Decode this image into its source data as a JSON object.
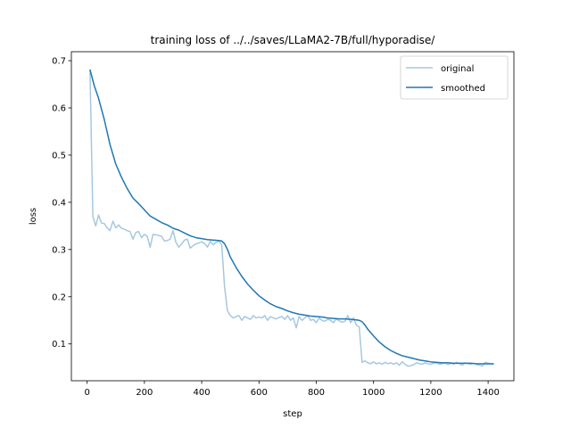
{
  "chart_data": {
    "type": "line",
    "title": "training loss of ../../saves/LLaMA2-7B/full/hyporadise/",
    "xlabel": "step",
    "ylabel": "loss",
    "xlim": [
      -55,
      1490
    ],
    "ylim": [
      0.022,
      0.719
    ],
    "xticks": [
      0,
      200,
      400,
      600,
      800,
      1000,
      1200,
      1400
    ],
    "yticks": [
      0.1,
      0.2,
      0.3,
      0.4,
      0.5,
      0.6,
      0.7
    ],
    "xtick_labels": [
      "0",
      "200",
      "400",
      "600",
      "800",
      "1000",
      "1200",
      "1400"
    ],
    "ytick_labels": [
      "0.1",
      "0.2",
      "0.3",
      "0.4",
      "0.5",
      "0.6",
      "0.7"
    ],
    "grid": false,
    "legend_position": "top-right",
    "series": [
      {
        "name": "original",
        "color": "#a6c8e0",
        "x": [
          10,
          20,
          30,
          40,
          50,
          60,
          70,
          80,
          90,
          100,
          110,
          120,
          130,
          140,
          150,
          160,
          170,
          180,
          190,
          200,
          210,
          220,
          230,
          240,
          250,
          260,
          270,
          280,
          290,
          300,
          310,
          320,
          330,
          340,
          350,
          360,
          370,
          380,
          390,
          400,
          410,
          420,
          430,
          440,
          450,
          460,
          470,
          480,
          490,
          500,
          510,
          520,
          530,
          540,
          550,
          560,
          570,
          580,
          590,
          600,
          610,
          620,
          630,
          640,
          650,
          660,
          670,
          680,
          690,
          700,
          710,
          720,
          730,
          740,
          750,
          760,
          770,
          780,
          790,
          800,
          810,
          820,
          830,
          840,
          850,
          860,
          870,
          880,
          890,
          900,
          910,
          920,
          930,
          940,
          950,
          960,
          970,
          980,
          990,
          1000,
          1010,
          1020,
          1030,
          1040,
          1050,
          1060,
          1070,
          1080,
          1090,
          1100,
          1110,
          1120,
          1130,
          1140,
          1150,
          1160,
          1170,
          1180,
          1190,
          1200,
          1210,
          1220,
          1230,
          1240,
          1250,
          1260,
          1270,
          1280,
          1290,
          1300,
          1310,
          1320,
          1330,
          1340,
          1350,
          1360,
          1370,
          1380,
          1390,
          1400,
          1410,
          1420
        ],
        "values": [
          0.681,
          0.37,
          0.35,
          0.373,
          0.356,
          0.355,
          0.346,
          0.34,
          0.36,
          0.346,
          0.352,
          0.345,
          0.343,
          0.34,
          0.338,
          0.322,
          0.336,
          0.338,
          0.325,
          0.332,
          0.328,
          0.305,
          0.332,
          0.331,
          0.33,
          0.328,
          0.318,
          0.319,
          0.322,
          0.34,
          0.315,
          0.305,
          0.312,
          0.32,
          0.322,
          0.303,
          0.308,
          0.312,
          0.314,
          0.316,
          0.313,
          0.305,
          0.317,
          0.31,
          0.315,
          0.318,
          0.31,
          0.22,
          0.17,
          0.16,
          0.155,
          0.158,
          0.16,
          0.15,
          0.158,
          0.155,
          0.152,
          0.16,
          0.155,
          0.157,
          0.155,
          0.16,
          0.15,
          0.158,
          0.155,
          0.153,
          0.156,
          0.158,
          0.152,
          0.16,
          0.15,
          0.155,
          0.134,
          0.158,
          0.15,
          0.155,
          0.16,
          0.15,
          0.152,
          0.145,
          0.155,
          0.15,
          0.148,
          0.152,
          0.15,
          0.145,
          0.153,
          0.149,
          0.146,
          0.148,
          0.16,
          0.145,
          0.155,
          0.14,
          0.136,
          0.061,
          0.064,
          0.06,
          0.058,
          0.062,
          0.058,
          0.06,
          0.057,
          0.061,
          0.058,
          0.06,
          0.057,
          0.06,
          0.055,
          0.062,
          0.057,
          0.053,
          0.054,
          0.056,
          0.06,
          0.058,
          0.057,
          0.06,
          0.058,
          0.057,
          0.059,
          0.06,
          0.057,
          0.058,
          0.06,
          0.056,
          0.059,
          0.057,
          0.061,
          0.058,
          0.055,
          0.06,
          0.058,
          0.057,
          0.059,
          0.056,
          0.055,
          0.053,
          0.061,
          0.059,
          0.058,
          0.058
        ]
      },
      {
        "name": "smoothed",
        "color": "#1f77b4",
        "x": [
          10,
          25,
          40,
          60,
          80,
          100,
          120,
          140,
          160,
          180,
          200,
          220,
          240,
          260,
          280,
          300,
          320,
          340,
          360,
          380,
          400,
          420,
          440,
          460,
          470,
          480,
          490,
          500,
          520,
          540,
          560,
          580,
          600,
          620,
          640,
          660,
          680,
          700,
          720,
          740,
          760,
          780,
          800,
          820,
          840,
          860,
          880,
          900,
          920,
          940,
          950,
          960,
          970,
          980,
          1000,
          1020,
          1040,
          1060,
          1080,
          1100,
          1120,
          1140,
          1160,
          1180,
          1200,
          1220,
          1240,
          1260,
          1280,
          1300,
          1320,
          1340,
          1360,
          1380,
          1400,
          1420
        ],
        "values": [
          0.681,
          0.647,
          0.62,
          0.575,
          0.522,
          0.481,
          0.453,
          0.429,
          0.409,
          0.397,
          0.384,
          0.371,
          0.364,
          0.357,
          0.352,
          0.345,
          0.341,
          0.335,
          0.329,
          0.325,
          0.323,
          0.321,
          0.32,
          0.319,
          0.318,
          0.312,
          0.3,
          0.284,
          0.262,
          0.243,
          0.227,
          0.214,
          0.202,
          0.193,
          0.185,
          0.179,
          0.175,
          0.17,
          0.166,
          0.163,
          0.161,
          0.159,
          0.158,
          0.157,
          0.155,
          0.154,
          0.153,
          0.153,
          0.152,
          0.151,
          0.15,
          0.147,
          0.14,
          0.131,
          0.117,
          0.104,
          0.094,
          0.086,
          0.08,
          0.075,
          0.072,
          0.069,
          0.066,
          0.064,
          0.062,
          0.061,
          0.06,
          0.06,
          0.059,
          0.059,
          0.059,
          0.059,
          0.058,
          0.058,
          0.058,
          0.058
        ]
      }
    ]
  }
}
